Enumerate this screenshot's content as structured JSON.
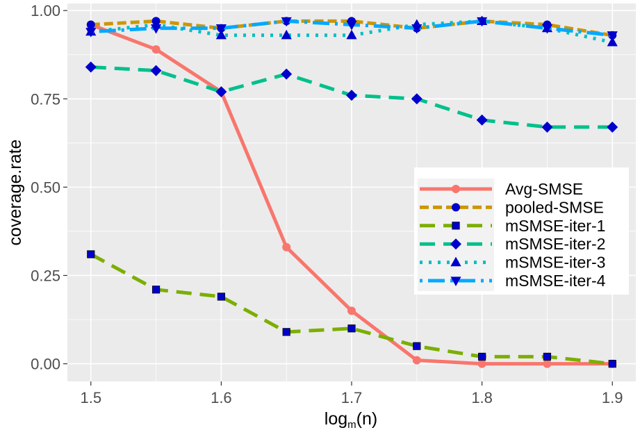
{
  "chart_data": {
    "type": "line",
    "title": "",
    "xlabel": "log",
    "xlabel_subscript": "m",
    "xlabel_suffix": "(n)",
    "ylabel": "coverage.rate",
    "xlim": [
      1.482,
      1.918
    ],
    "ylim": [
      -0.05,
      1.02
    ],
    "x_ticks": [
      1.5,
      1.6,
      1.7,
      1.8,
      1.9
    ],
    "x_tick_labels": [
      "1.5",
      "1.6",
      "1.7",
      "1.8",
      "1.9"
    ],
    "y_ticks": [
      0.0,
      0.25,
      0.5,
      0.75,
      1.0
    ],
    "y_tick_labels": [
      "0.00",
      "0.25",
      "0.50",
      "0.75",
      "1.00"
    ],
    "grid": true,
    "legend_position": "right",
    "x": [
      1.5,
      1.55,
      1.6,
      1.65,
      1.7,
      1.75,
      1.8,
      1.85,
      1.9
    ],
    "series": [
      {
        "name": "Avg-SMSE",
        "color": "#F8766D",
        "dash": "solid",
        "marker": "circle",
        "marker_color": "#F8766D",
        "values": [
          0.96,
          0.89,
          0.77,
          0.33,
          0.15,
          0.01,
          0.0,
          0.0,
          0.0
        ]
      },
      {
        "name": "pooled-SMSE",
        "color": "#CD9600",
        "dash": "dotted-dash",
        "marker": "circle",
        "marker_color": "#0000CD",
        "values": [
          0.96,
          0.97,
          0.95,
          0.97,
          0.97,
          0.95,
          0.97,
          0.96,
          0.93
        ]
      },
      {
        "name": "mSMSE-iter-1",
        "color": "#7CAE00",
        "dash": "long-dash",
        "marker": "square",
        "marker_color": "#0000CD",
        "values": [
          0.31,
          0.21,
          0.19,
          0.09,
          0.1,
          0.05,
          0.02,
          0.02,
          0.0
        ]
      },
      {
        "name": "mSMSE-iter-2",
        "color": "#00C08B",
        "dash": "long-dash",
        "marker": "diamond",
        "marker_color": "#0000CD",
        "values": [
          0.84,
          0.83,
          0.77,
          0.82,
          0.76,
          0.75,
          0.69,
          0.67,
          0.67
        ]
      },
      {
        "name": "mSMSE-iter-3",
        "color": "#00BFC4",
        "dash": "dotted",
        "marker": "triangle",
        "marker_color": "#0000CD",
        "values": [
          0.94,
          0.96,
          0.93,
          0.93,
          0.93,
          0.96,
          0.97,
          0.95,
          0.91
        ]
      },
      {
        "name": "mSMSE-iter-4",
        "color": "#00A9FF",
        "dash": "dot-long-dash",
        "marker": "triangle-down",
        "marker_color": "#0000CD",
        "values": [
          0.94,
          0.95,
          0.95,
          0.97,
          0.96,
          0.95,
          0.97,
          0.95,
          0.93
        ]
      }
    ]
  }
}
